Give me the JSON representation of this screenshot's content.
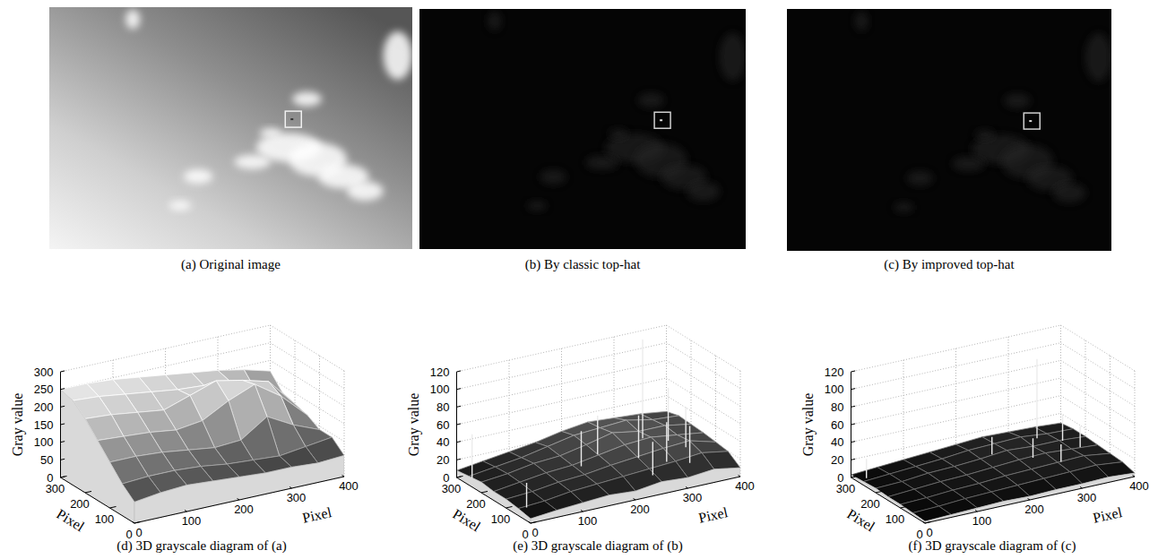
{
  "images": [
    {
      "caption": "(a) Original image"
    },
    {
      "caption": "(b) By classic top-hat"
    },
    {
      "caption": "(c) By improved top-hat"
    }
  ],
  "chart_data": [
    {
      "type": "surface3d",
      "title": "(d) 3D grayscale diagram of (a)",
      "x_label": "Pixel",
      "y_label": "Pixel",
      "z_label": "Gray value",
      "x": [
        0,
        50,
        100,
        150,
        200,
        250,
        300,
        350,
        400
      ],
      "y": [
        0,
        50,
        100,
        150,
        200,
        250,
        300
      ],
      "z": [
        [
          60,
          70,
          75,
          70,
          65,
          60,
          60,
          55,
          60
        ],
        [
          90,
          95,
          95,
          90,
          80,
          75,
          70,
          80,
          90
        ],
        [
          130,
          130,
          125,
          115,
          105,
          110,
          160,
          120,
          90
        ],
        [
          170,
          165,
          160,
          150,
          160,
          200,
          230,
          180,
          110
        ],
        [
          210,
          205,
          195,
          185,
          210,
          235,
          220,
          200,
          120
        ],
        [
          240,
          235,
          225,
          215,
          205,
          200,
          195,
          150,
          130
        ],
        [
          250,
          250,
          245,
          235,
          225,
          215,
          205,
          190,
          170
        ]
      ],
      "xlim": [
        0,
        400
      ],
      "xticks": [
        0,
        100,
        200,
        300,
        400
      ],
      "ylim": [
        0,
        300
      ],
      "yticks": [
        0,
        100,
        200,
        300
      ],
      "zlim": [
        0,
        300
      ],
      "zticks": [
        0,
        50,
        100,
        150,
        200,
        250,
        300
      ],
      "grid": true
    },
    {
      "type": "surface3d",
      "title": "(e) 3D grayscale diagram of (b)",
      "x_label": "Pixel",
      "y_label": "Pixel",
      "z_label": "Gray value",
      "x": [
        0,
        50,
        100,
        150,
        200,
        250,
        300,
        350,
        400
      ],
      "y": [
        0,
        50,
        100,
        150,
        200,
        250,
        300
      ],
      "z": [
        [
          5,
          8,
          10,
          12,
          10,
          14,
          12,
          15,
          10
        ],
        [
          8,
          10,
          14,
          16,
          18,
          20,
          22,
          25,
          20
        ],
        [
          10,
          12,
          16,
          18,
          22,
          25,
          28,
          30,
          22
        ],
        [
          10,
          14,
          18,
          20,
          25,
          30,
          32,
          28,
          24
        ],
        [
          12,
          15,
          20,
          22,
          28,
          35,
          30,
          30,
          25
        ],
        [
          10,
          14,
          18,
          24,
          30,
          32,
          34,
          28,
          26
        ],
        [
          8,
          12,
          16,
          20,
          26,
          30,
          28,
          26,
          22
        ]
      ],
      "peaks": {
        "x": [
          350,
          20,
          30,
          380,
          300,
          330,
          360,
          250,
          200,
          390,
          280
        ],
        "y": [
          290,
          280,
          80,
          250,
          200,
          150,
          120,
          260,
          220,
          200,
          100
        ],
        "z": [
          112,
          50,
          28,
          60,
          48,
          45,
          42,
          44,
          40,
          46,
          38
        ]
      },
      "xlim": [
        0,
        400
      ],
      "xticks": [
        0,
        100,
        200,
        300,
        400
      ],
      "ylim": [
        0,
        300
      ],
      "yticks": [
        0,
        100,
        200,
        300
      ],
      "zlim": [
        0,
        120
      ],
      "zticks": [
        0,
        20,
        40,
        60,
        80,
        100,
        120
      ],
      "grid": true
    },
    {
      "type": "surface3d",
      "title": "(f) 3D grayscale diagram of (c)",
      "x_label": "Pixel",
      "y_label": "Pixel",
      "z_label": "Gray value",
      "x": [
        0,
        50,
        100,
        150,
        200,
        250,
        300,
        350,
        400
      ],
      "y": [
        0,
        50,
        100,
        150,
        200,
        250,
        300
      ],
      "z": [
        [
          2,
          3,
          4,
          5,
          4,
          5,
          5,
          6,
          4
        ],
        [
          3,
          4,
          6,
          7,
          8,
          9,
          10,
          11,
          8
        ],
        [
          4,
          5,
          7,
          8,
          10,
          11,
          12,
          13,
          9
        ],
        [
          4,
          6,
          8,
          9,
          11,
          13,
          14,
          12,
          10
        ],
        [
          5,
          6,
          9,
          10,
          12,
          15,
          13,
          13,
          11
        ],
        [
          4,
          6,
          8,
          10,
          13,
          14,
          15,
          12,
          11
        ],
        [
          3,
          5,
          7,
          9,
          11,
          13,
          12,
          11,
          9
        ]
      ],
      "peaks": {
        "x": [
          350,
          20,
          380,
          300,
          330,
          250,
          390
        ],
        "y": [
          290,
          280,
          250,
          200,
          150,
          260,
          200
        ],
        "z": [
          90,
          22,
          30,
          22,
          20,
          20,
          24
        ]
      },
      "xlim": [
        0,
        400
      ],
      "xticks": [
        0,
        100,
        200,
        300,
        400
      ],
      "ylim": [
        0,
        300
      ],
      "yticks": [
        0,
        100,
        200,
        300
      ],
      "zlim": [
        0,
        120
      ],
      "zticks": [
        0,
        20,
        40,
        60,
        80,
        100,
        120
      ],
      "grid": true
    }
  ]
}
